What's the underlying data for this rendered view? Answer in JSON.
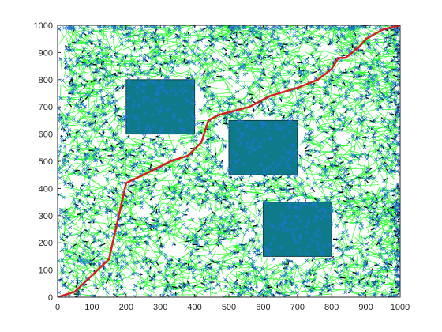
{
  "chart_data": {
    "type": "scatter",
    "title": "",
    "xlabel": "",
    "ylabel": "",
    "xlim": [
      0,
      1000
    ],
    "ylim": [
      0,
      1000
    ],
    "x_ticks": [
      0,
      100,
      200,
      300,
      400,
      500,
      600,
      700,
      800,
      900,
      1000
    ],
    "y_ticks": [
      0,
      100,
      200,
      300,
      400,
      500,
      600,
      700,
      800,
      900,
      1000
    ],
    "grid": false,
    "legend": "none",
    "colors": {
      "samples": "#1f77d4",
      "tree_edges": "#00ff00",
      "local_edges": "#000000",
      "path": "#d62020",
      "obstacles": "#0e7a8a",
      "obstacle_edge": "#0b3d47"
    },
    "obstacles": [
      {
        "x": [
          200,
          400
        ],
        "y": [
          600,
          800
        ]
      },
      {
        "x": [
          500,
          700
        ],
        "y": [
          450,
          650
        ]
      },
      {
        "x": [
          600,
          800
        ],
        "y": [
          150,
          350
        ]
      }
    ],
    "path": {
      "x": [
        0,
        50,
        100,
        150,
        200,
        250,
        330,
        380,
        420,
        440,
        470,
        500,
        560,
        620,
        700,
        760,
        800,
        820,
        840,
        860,
        880,
        900,
        950,
        1000
      ],
      "y": [
        0,
        20,
        80,
        140,
        420,
        450,
        500,
        520,
        570,
        650,
        670,
        680,
        700,
        740,
        770,
        800,
        840,
        880,
        880,
        900,
        920,
        950,
        985,
        1000
      ]
    },
    "samples": {
      "marker": "x",
      "count_estimate": 2500,
      "x_range": [
        0,
        1000
      ],
      "y_range": [
        0,
        1000
      ]
    }
  }
}
